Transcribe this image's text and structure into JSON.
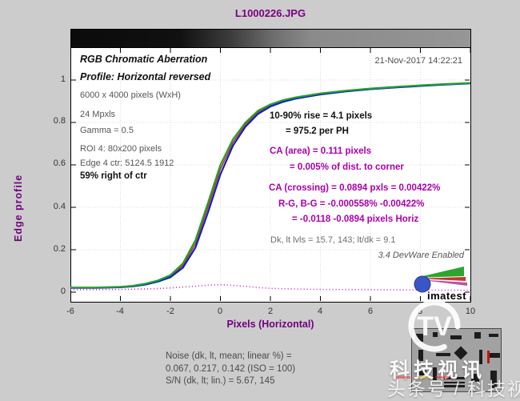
{
  "title": "L1000226.JPG",
  "timestamp": "21-Nov-2017 14:22:21",
  "info_panel": {
    "heading": "RGB Chromatic Aberration",
    "profile": "Profile: Horizontal reversed",
    "resolution": "6000 x 4000 pixels (WxH)",
    "megapixels": "24 Mpxls",
    "gamma": "Gamma = 0.5",
    "roi": "ROI 4: 80x200 pixels",
    "edge_ctr": "Edge 4 ctr: 5124.5  1912",
    "position": "59% right of ctr"
  },
  "results": {
    "rise_line1": "10-90% rise = 4.1 pixels",
    "rise_line2": "= 975.2 per PH",
    "ca_area_line1": "CA (area) = 0.111 pixels",
    "ca_area_line2": "= 0.005% of dist. to corner",
    "ca_crossing": "CA (crossing) = 0.0894 pxls = 0.00422%",
    "rg_bg": "R-G, B-G = -0.000558%  -0.00422%",
    "pixels_horiz": "= -0.0118  -0.0894 pixels Horiz",
    "levels": "Dk, lt lvls = 15.7, 143;  lt/dk = 9.1",
    "version": "3.4  DevWare Enabled"
  },
  "axes": {
    "ylabel": "Edge profile",
    "xlabel": "Pixels (Horizontal)",
    "x_ticks": [
      "-6",
      "-4",
      "-2",
      "0",
      "2",
      "4",
      "6",
      "8",
      "10"
    ],
    "y_ticks": [
      "0",
      "0.2",
      "0.4",
      "0.6",
      "0.8",
      "1"
    ]
  },
  "noise_block": {
    "line1": "Noise (dk, lt, mean; linear %) =",
    "line2": "0.067,  0.217,  0.142  (ISO =  100)",
    "line3": "S/N (dk, lt; lin.) = 5.67,  145"
  },
  "watermark": {
    "brand": "科技视讯",
    "byline": "头条号 / 科技视讯",
    "tv": "TV"
  },
  "brand": {
    "imatest": "imatest"
  },
  "colors": {
    "title_purple": "#7d0081",
    "annotation_magenta": "#aa00aa",
    "axis_label_purple": "#70007d",
    "figure_bg": "#cccccc",
    "red_series": "#c03020",
    "green_series": "#1fa32a",
    "blue_series": "#1520c0",
    "ca_dotted": "#cc22cc"
  },
  "chart_data": {
    "type": "line",
    "title": "L1000226.JPG",
    "xlabel": "Pixels (Horizontal)",
    "ylabel": "Edge profile",
    "xlim": [
      -6,
      10
    ],
    "ylim": [
      -0.045,
      1.24
    ],
    "grid": true,
    "x": [
      -6,
      -5,
      -4,
      -3.5,
      -3,
      -2.5,
      -2,
      -1.5,
      -1,
      -0.5,
      0,
      0.5,
      1,
      1.5,
      2,
      2.5,
      3,
      4,
      5,
      6,
      7,
      8,
      9,
      10
    ],
    "x_tick_values": [
      -6,
      -4,
      -2,
      0,
      2,
      4,
      6,
      8,
      10
    ],
    "y_tick_values": [
      0,
      0.2,
      0.4,
      0.6,
      0.8,
      1
    ],
    "series": [
      {
        "name": "R edge profile",
        "color": "#c03020",
        "width": 1.6,
        "dotted": false,
        "values": [
          0.021,
          0.021,
          0.024,
          0.029,
          0.038,
          0.052,
          0.075,
          0.125,
          0.228,
          0.4,
          0.58,
          0.705,
          0.79,
          0.848,
          0.88,
          0.901,
          0.915,
          0.935,
          0.948,
          0.959,
          0.967,
          0.974,
          0.98,
          0.985
        ]
      },
      {
        "name": "B edge profile",
        "color": "#1520c0",
        "width": 2.2,
        "dotted": false,
        "values": [
          0.02,
          0.02,
          0.023,
          0.027,
          0.036,
          0.05,
          0.07,
          0.115,
          0.21,
          0.375,
          0.555,
          0.69,
          0.78,
          0.84,
          0.875,
          0.897,
          0.912,
          0.932,
          0.946,
          0.957,
          0.965,
          0.972,
          0.979,
          0.984
        ]
      },
      {
        "name": "G edge profile",
        "color": "#1fa32a",
        "width": 2.2,
        "dotted": false,
        "values": [
          0.022,
          0.022,
          0.025,
          0.03,
          0.04,
          0.055,
          0.08,
          0.135,
          0.245,
          0.42,
          0.6,
          0.72,
          0.8,
          0.855,
          0.885,
          0.905,
          0.918,
          0.937,
          0.95,
          0.96,
          0.968,
          0.975,
          0.981,
          0.986
        ]
      },
      {
        "name": "CA area difference",
        "color": "#cc22cc",
        "width": 1.6,
        "dotted": true,
        "values": [
          0.012,
          0.012,
          0.013,
          0.014,
          0.015,
          0.017,
          0.02,
          0.024,
          0.028,
          0.033,
          0.035,
          0.032,
          0.027,
          0.022,
          0.018,
          0.016,
          0.015,
          0.013,
          0.012,
          0.012,
          0.011,
          0.01,
          0.009,
          0.009
        ]
      }
    ],
    "annotations": [
      "10-90% rise = 4.1 pixels = 975.2 per PH",
      "CA (area) = 0.111 pixels = 0.005% of dist. to corner",
      "CA (crossing) = 0.0894 pxls = 0.00422%",
      "R-G, B-G = -0.000558% -0.00422% = -0.0118 -0.0894 pixels Horiz",
      "Dk, lt lvls = 15.7, 143; lt/dk = 9.1"
    ]
  }
}
